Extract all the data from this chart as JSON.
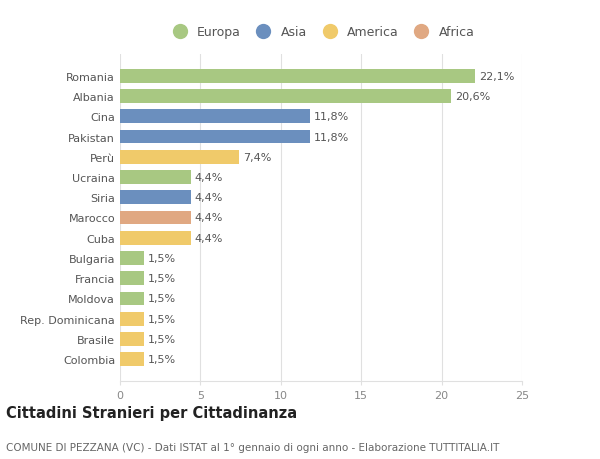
{
  "countries": [
    "Romania",
    "Albania",
    "Cina",
    "Pakistan",
    "Perù",
    "Ucraina",
    "Siria",
    "Marocco",
    "Cuba",
    "Bulgaria",
    "Francia",
    "Moldova",
    "Rep. Dominicana",
    "Brasile",
    "Colombia"
  ],
  "values": [
    22.1,
    20.6,
    11.8,
    11.8,
    7.4,
    4.4,
    4.4,
    4.4,
    4.4,
    1.5,
    1.5,
    1.5,
    1.5,
    1.5,
    1.5
  ],
  "labels": [
    "22,1%",
    "20,6%",
    "11,8%",
    "11,8%",
    "7,4%",
    "4,4%",
    "4,4%",
    "4,4%",
    "4,4%",
    "1,5%",
    "1,5%",
    "1,5%",
    "1,5%",
    "1,5%",
    "1,5%"
  ],
  "continents": [
    "Europa",
    "Europa",
    "Asia",
    "Asia",
    "America",
    "Europa",
    "Asia",
    "Africa",
    "America",
    "Europa",
    "Europa",
    "Europa",
    "America",
    "America",
    "America"
  ],
  "continent_colors": {
    "Europa": "#a8c882",
    "Asia": "#6b8fbe",
    "America": "#f0ca6a",
    "Africa": "#e0a882"
  },
  "legend_order": [
    "Europa",
    "Asia",
    "America",
    "Africa"
  ],
  "title": "Cittadini Stranieri per Cittadinanza",
  "subtitle": "COMUNE DI PEZZANA (VC) - Dati ISTAT al 1° gennaio di ogni anno - Elaborazione TUTTITALIA.IT",
  "xlim": [
    0,
    25
  ],
  "xticks": [
    0,
    5,
    10,
    15,
    20,
    25
  ],
  "background_color": "#ffffff",
  "grid_color": "#e0e0e0",
  "bar_height": 0.68,
  "label_fontsize": 8,
  "tick_fontsize": 8,
  "title_fontsize": 10.5,
  "subtitle_fontsize": 7.5
}
